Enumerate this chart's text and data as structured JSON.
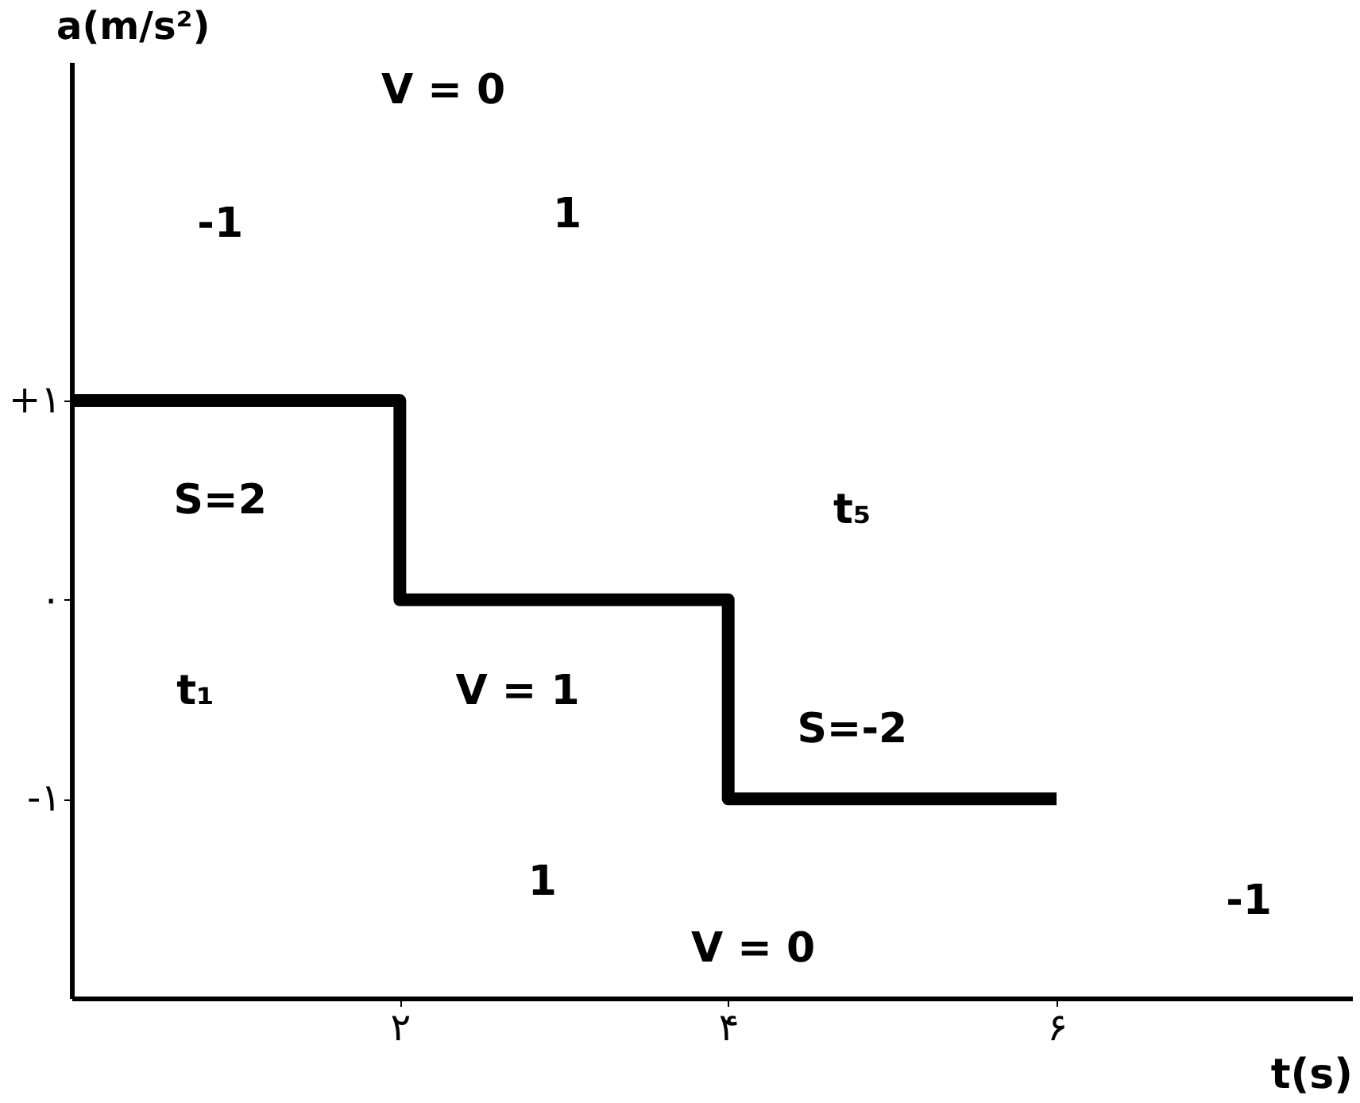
{
  "chart_data": {
    "type": "step",
    "xlabel": "t(s)",
    "ylabel": "a(m/s²)",
    "x": [
      0,
      2,
      4,
      6
    ],
    "series": [
      {
        "color": "#000000",
        "values": [
          1,
          0,
          -1,
          -1
        ]
      }
    ],
    "xlim": [
      0,
      7.8
    ],
    "ylim": [
      -2,
      2.7
    ],
    "xticks": [
      {
        "value": 2,
        "label": "۲"
      },
      {
        "value": 4,
        "label": "۴"
      },
      {
        "value": 6,
        "label": "۶"
      }
    ],
    "yticks": [
      {
        "value": -1,
        "label": "-۱"
      },
      {
        "value": 0,
        "label": "۰"
      },
      {
        "value": 1,
        "label": "+۱"
      }
    ],
    "grid": false,
    "marker": "none",
    "line_style": "solid",
    "annotations": [
      "-1",
      "V = 0",
      "1",
      "S=2",
      "t₁",
      "V = 1",
      "t₅",
      "S=-2",
      "1",
      "V = 0",
      "-1"
    ]
  }
}
